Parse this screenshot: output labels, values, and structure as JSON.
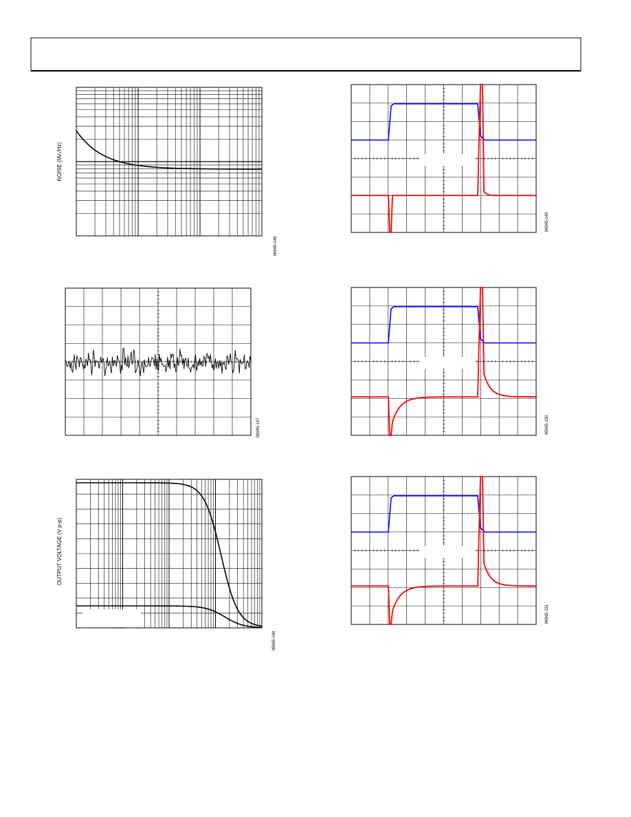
{
  "plots": {
    "noise_density": {
      "y_label": "NOISE (fA/√Hz)",
      "figure_code": "06945-146"
    },
    "noise_time": {
      "figure_code": "06945-147"
    },
    "output_swing": {
      "y_label": "OUTPUT VOLTAGE (V p-p)",
      "figure_code": "06945-148"
    },
    "scope_1": {
      "figure_code": "06945-149"
    },
    "scope_2": {
      "figure_code": "06945-150"
    },
    "scope_3": {
      "figure_code": "06945-151"
    }
  }
}
